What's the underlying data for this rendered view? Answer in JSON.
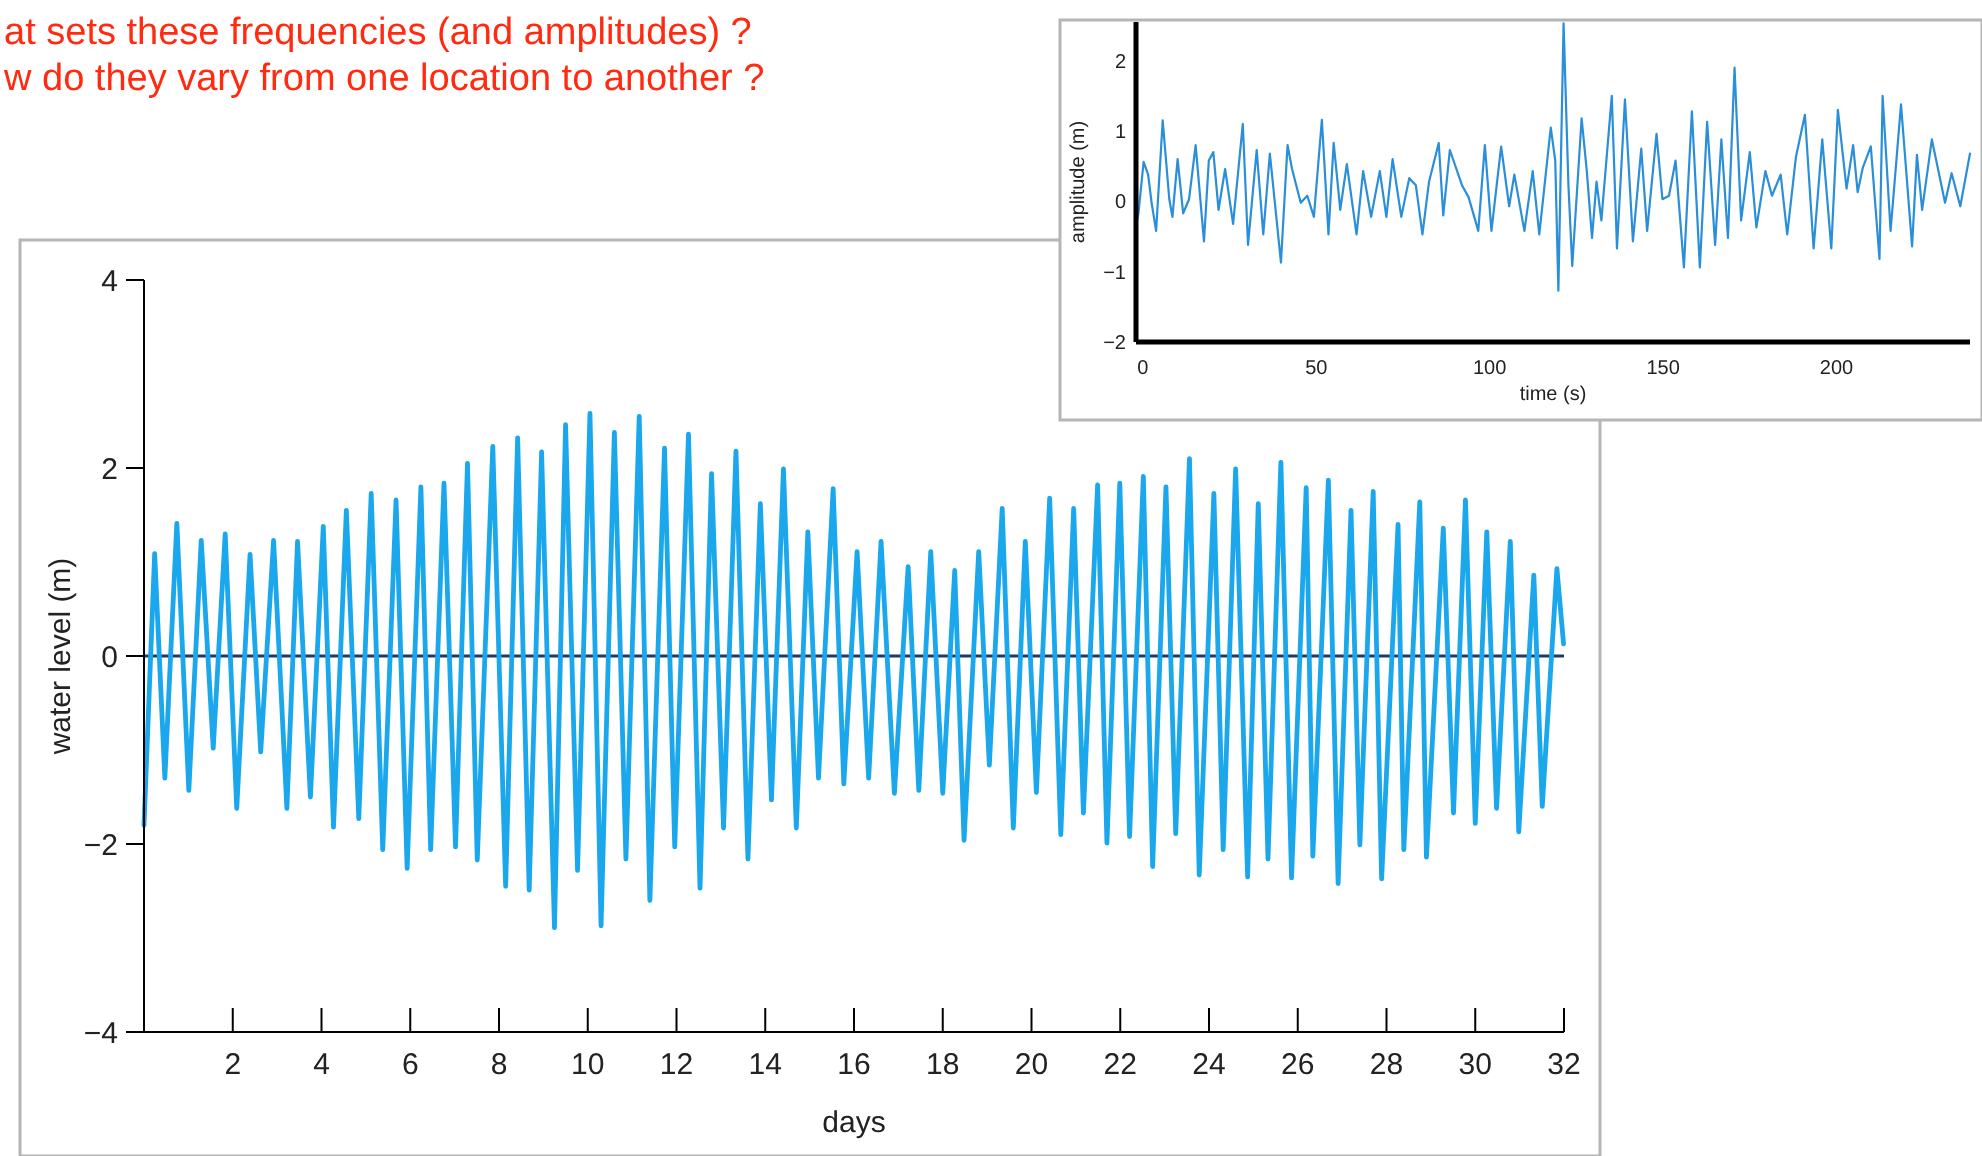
{
  "chart_data": [
    {
      "type": "line",
      "xlabel": "days",
      "ylabel": "water level (m)",
      "xlim": [
        0,
        32
      ],
      "ylim": [
        -4,
        4
      ],
      "xticks": [
        2,
        4,
        6,
        8,
        10,
        12,
        14,
        16,
        18,
        20,
        22,
        24,
        26,
        28,
        30,
        32
      ],
      "yticks": [
        -4,
        -2,
        0,
        2,
        4
      ],
      "ref_lines": [
        {
          "axis": "y",
          "value": 0,
          "color": "#1f3a68"
        }
      ],
      "annotations": [
        "at sets these frequencies (and amplitudes) ?",
        "w do they vary from one location to another ?"
      ],
      "x": [
        0,
        0.24,
        0.47,
        0.74,
        1.01,
        1.29,
        1.56,
        1.83,
        2.09,
        2.39,
        2.63,
        2.92,
        3.22,
        3.46,
        3.75,
        4.04,
        4.27,
        4.56,
        4.84,
        5.12,
        5.38,
        5.68,
        5.93,
        6.24,
        6.46,
        6.76,
        7.02,
        7.29,
        7.51,
        7.86,
        8.15,
        8.42,
        8.68,
        8.96,
        9.25,
        9.5,
        9.77,
        10.05,
        10.3,
        10.6,
        10.86,
        11.16,
        11.4,
        11.73,
        11.96,
        12.27,
        12.53,
        12.79,
        13.06,
        13.34,
        13.61,
        13.89,
        14.14,
        14.41,
        14.7,
        14.96,
        15.2,
        15.53,
        15.77,
        16.07,
        16.33,
        16.61,
        16.91,
        17.22,
        17.46,
        17.73,
        18,
        18.27,
        18.48,
        18.81,
        19.05,
        19.34,
        19.59,
        19.86,
        20.11,
        20.41,
        20.66,
        20.95,
        21.17,
        21.49,
        21.7,
        21.99,
        22.21,
        22.52,
        22.73,
        23.03,
        23.25,
        23.56,
        23.78,
        24.11,
        24.32,
        24.6,
        24.87,
        25.11,
        25.33,
        25.62,
        25.86,
        26.19,
        26.34,
        26.69,
        26.91,
        27.2,
        27.4,
        27.7,
        27.89,
        28.26,
        28.39,
        28.75,
        28.9,
        29.28,
        29.51,
        29.78,
        30,
        30.26,
        30.48,
        30.79,
        30.98,
        31.32,
        31.51,
        31.84,
        31.99
      ],
      "series": [
        {
          "color": "#1aa7ec",
          "values": [
            -1.8,
            1.09,
            -1.3,
            1.41,
            -1.43,
            1.23,
            -0.98,
            1.3,
            -1.62,
            1.08,
            -1.02,
            1.23,
            -1.62,
            1.22,
            -1.5,
            1.38,
            -1.82,
            1.55,
            -1.73,
            1.73,
            -2.06,
            1.66,
            -2.26,
            1.8,
            -2.06,
            1.84,
            -2.03,
            2.05,
            -2.17,
            2.23,
            -2.45,
            2.32,
            -2.49,
            2.17,
            -2.89,
            2.46,
            -2.28,
            2.58,
            -2.87,
            2.38,
            -2.16,
            2.55,
            -2.6,
            2.21,
            -2.03,
            2.36,
            -2.47,
            1.94,
            -1.83,
            2.18,
            -2.16,
            1.62,
            -1.53,
            1.99,
            -1.83,
            1.32,
            -1.3,
            1.78,
            -1.36,
            1.11,
            -1.3,
            1.22,
            -1.46,
            0.95,
            -1.43,
            1.11,
            -1.46,
            0.91,
            -1.96,
            1.11,
            -1.16,
            1.57,
            -1.83,
            1.22,
            -1.45,
            1.68,
            -1.9,
            1.57,
            -1.67,
            1.82,
            -1.99,
            1.84,
            -1.92,
            1.91,
            -2.24,
            1.8,
            -1.89,
            2.1,
            -2.33,
            1.73,
            -2.06,
            1.99,
            -2.35,
            1.62,
            -2.16,
            2.06,
            -2.36,
            1.79,
            -2.13,
            1.87,
            -2.42,
            1.55,
            -2.01,
            1.75,
            -2.37,
            1.4,
            -2.06,
            1.64,
            -2.14,
            1.36,
            -1.67,
            1.66,
            -1.78,
            1.32,
            -1.62,
            1.22,
            -1.87,
            0.86,
            -1.6,
            0.93,
            0.13
          ]
        }
      ]
    },
    {
      "type": "line",
      "xlabel": "time (s)",
      "ylabel": "amplitude (m)",
      "xlim": [
        -2,
        238.5
      ],
      "ylim": [
        -2,
        2.55
      ],
      "xticks": [
        0,
        50,
        100,
        150,
        200
      ],
      "yticks": [
        -2,
        -1,
        0,
        1,
        2
      ],
      "x": [
        -1.9,
        -1.3,
        0.2,
        1.5,
        2.5,
        3.8,
        5.7,
        7.6,
        8.5,
        10,
        11.6,
        13.3,
        15.2,
        17.6,
        19,
        20.3,
        21.8,
        23.7,
        26,
        28.8,
        30.3,
        32.8,
        34.7,
        36.6,
        39.8,
        41.7,
        43,
        45.5,
        47.4,
        49.3,
        51.6,
        53.5,
        55,
        56.9,
        58.8,
        61.6,
        63.5,
        65.8,
        68.3,
        70.2,
        72,
        74.5,
        76.8,
        78.7,
        80.6,
        82.5,
        85.3,
        86.6,
        88.5,
        92,
        93.9,
        96.7,
        98.6,
        100.5,
        103.3,
        105.6,
        107.1,
        110,
        112.4,
        114.3,
        117.6,
        118.9,
        119.8,
        121.3,
        122.7,
        123.8,
        126.5,
        128,
        129.5,
        130.8,
        132.2,
        135.2,
        136.7,
        139,
        141.3,
        143.7,
        145.4,
        148.1,
        149.8,
        151.7,
        153.6,
        156,
        158.3,
        160.6,
        162.7,
        165,
        166.8,
        168.7,
        170.6,
        172.5,
        175,
        176.9,
        179.5,
        181.4,
        183.9,
        185.8,
        188.3,
        190.9,
        193.4,
        195.9,
        198.5,
        200.4,
        202.9,
        204.8,
        206.1,
        207.6,
        209.9,
        212.4,
        213.3,
        215.6,
        218.6,
        221.8,
        223.2,
        224.7,
        227.5,
        229.4,
        231.3,
        233.2,
        235.7,
        238.5
      ],
      "series": [
        {
          "color": "#2a8fd8",
          "values": [
            -0.32,
            -0.17,
            0.56,
            0.38,
            -0.02,
            -0.42,
            1.15,
            0.03,
            -0.22,
            0.6,
            -0.17,
            0.03,
            0.8,
            -0.57,
            0.58,
            0.7,
            -0.12,
            0.46,
            -0.32,
            1.1,
            -0.62,
            0.73,
            -0.47,
            0.68,
            -0.87,
            0.8,
            0.46,
            -0.02,
            0.08,
            -0.22,
            1.16,
            -0.47,
            0.83,
            -0.12,
            0.53,
            -0.47,
            0.43,
            -0.22,
            0.43,
            -0.22,
            0.6,
            -0.22,
            0.33,
            0.23,
            -0.47,
            0.28,
            0.83,
            -0.2,
            0.73,
            0.23,
            0.06,
            -0.42,
            0.8,
            -0.42,
            0.78,
            -0.07,
            0.38,
            -0.42,
            0.43,
            -0.47,
            1.05,
            0.58,
            -1.27,
            2.53,
            0.23,
            -0.92,
            1.18,
            0.43,
            -0.52,
            0.28,
            -0.27,
            1.5,
            -0.67,
            1.45,
            -0.57,
            0.75,
            -0.42,
            0.96,
            0.03,
            0.08,
            0.58,
            -0.94,
            1.28,
            -0.94,
            1.13,
            -0.62,
            0.88,
            -0.52,
            1.9,
            -0.27,
            0.7,
            -0.37,
            0.43,
            0.08,
            0.38,
            -0.47,
            0.63,
            1.23,
            -0.67,
            0.88,
            -0.67,
            1.3,
            0.18,
            0.8,
            0.13,
            0.48,
            0.78,
            -0.82,
            1.5,
            -0.42,
            1.38,
            -0.64,
            0.66,
            -0.12,
            0.88,
            0.43,
            -0.02,
            0.4,
            -0.07,
            0.68
          ]
        }
      ]
    }
  ]
}
